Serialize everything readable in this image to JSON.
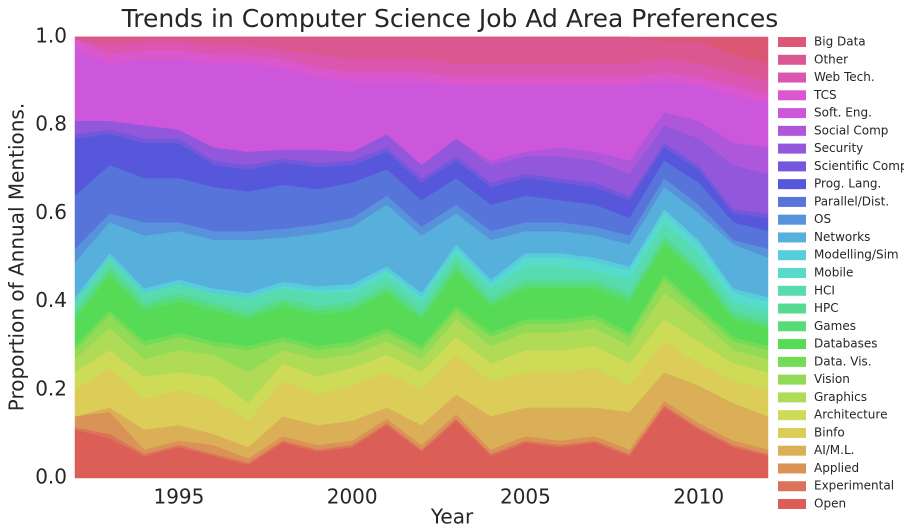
{
  "chart_data": {
    "type": "stacked_area",
    "title": "Trends in Computer Science Job Ad Area Preferences",
    "x_label": "Year",
    "y_label": "Proportion of Annual Mentions.",
    "x": [
      1992,
      1993,
      1994,
      1995,
      1996,
      1997,
      1998,
      1999,
      2000,
      2001,
      2002,
      2003,
      2004,
      2005,
      2006,
      2007,
      2008,
      2009,
      2010,
      2011,
      2012
    ],
    "xlim": [
      1992,
      2012
    ],
    "xticks": [
      1995,
      2000,
      2005,
      2010
    ],
    "ylim": [
      0,
      1
    ],
    "yticks": [
      {
        "value": 0,
        "label": "0.0"
      },
      {
        "value": 0.2,
        "label": "0.2"
      },
      {
        "value": 0.4,
        "label": "0.4"
      },
      {
        "value": 0.6,
        "label": "0.6"
      },
      {
        "value": 0.8,
        "label": "0.8"
      },
      {
        "value": 1,
        "label": "1.0"
      }
    ],
    "legend": "outside-right",
    "series": [
      {
        "name": "Open",
        "color": "#db5f57",
        "values": [
          0.11,
          0.09,
          0.05,
          0.07,
          0.05,
          0.03,
          0.08,
          0.06,
          0.07,
          0.12,
          0.06,
          0.13,
          0.05,
          0.08,
          0.07,
          0.08,
          0.05,
          0.16,
          0.11,
          0.07,
          0.05
        ]
      },
      {
        "name": "Experimental",
        "color": "#db7457",
        "values": [
          0.005,
          0.01,
          0.005,
          0.005,
          0.005,
          0.005,
          0.005,
          0.005,
          0.005,
          0.005,
          0.005,
          0.005,
          0.005,
          0.005,
          0.005,
          0.005,
          0.005,
          0.005,
          0.005,
          0.005,
          0.005
        ]
      },
      {
        "name": "Applied",
        "color": "#db9257",
        "values": [
          0.025,
          0.05,
          0.01,
          0.01,
          0.02,
          0.01,
          0.01,
          0.01,
          0.01,
          0.01,
          0.01,
          0.01,
          0.01,
          0.01,
          0.01,
          0.01,
          0.01,
          0.01,
          0.01,
          0.01,
          0.01
        ]
      },
      {
        "name": "AI/M.L.",
        "color": "#dbaf57",
        "values": [
          0,
          0.01,
          0.045,
          0.035,
          0.025,
          0.025,
          0.045,
          0.045,
          0.045,
          0.025,
          0.045,
          0.045,
          0.075,
          0.065,
          0.075,
          0.065,
          0.085,
          0.065,
          0.085,
          0.085,
          0.075
        ]
      },
      {
        "name": "Binfo",
        "color": "#dbcd57",
        "values": [
          0.06,
          0.09,
          0.07,
          0.08,
          0.08,
          0.06,
          0.08,
          0.07,
          0.08,
          0.08,
          0.08,
          0.09,
          0.08,
          0.08,
          0.08,
          0.09,
          0.06,
          0.07,
          0.05,
          0.05,
          0.06
        ]
      },
      {
        "name": "Architecture",
        "color": "#cddb57",
        "values": [
          0.04,
          0.04,
          0.05,
          0.04,
          0.05,
          0.04,
          0.04,
          0.04,
          0.04,
          0.04,
          0.04,
          0.04,
          0.04,
          0.05,
          0.05,
          0.05,
          0.05,
          0.05,
          0.05,
          0.04,
          0.04
        ]
      },
      {
        "name": "Graphics",
        "color": "#afdb57",
        "values": [
          0.03,
          0.05,
          0.04,
          0.05,
          0.05,
          0.07,
          0.03,
          0.04,
          0.03,
          0.03,
          0.03,
          0.04,
          0.04,
          0.04,
          0.04,
          0.04,
          0.04,
          0.06,
          0.05,
          0.03,
          0.03
        ]
      },
      {
        "name": "Vision",
        "color": "#92db57",
        "values": [
          0.02,
          0.03,
          0.03,
          0.03,
          0.02,
          0.05,
          0.02,
          0.02,
          0.02,
          0.02,
          0.02,
          0.02,
          0.02,
          0.02,
          0.02,
          0.02,
          0.02,
          0.03,
          0.02,
          0.02,
          0.02
        ]
      },
      {
        "name": "Data. Vis.",
        "color": "#74db57",
        "values": [
          0.01,
          0.01,
          0.01,
          0.01,
          0.01,
          0.01,
          0.01,
          0.01,
          0.01,
          0.01,
          0.01,
          0.01,
          0.01,
          0.01,
          0.01,
          0.01,
          0.01,
          0.01,
          0.01,
          0.01,
          0.01
        ]
      },
      {
        "name": "Databases",
        "color": "#57db57",
        "values": [
          0.06,
          0.08,
          0.07,
          0.07,
          0.07,
          0.06,
          0.07,
          0.07,
          0.07,
          0.08,
          0.06,
          0.08,
          0.06,
          0.07,
          0.07,
          0.06,
          0.07,
          0.07,
          0.07,
          0.04,
          0.04
        ]
      },
      {
        "name": "Games",
        "color": "#57db74",
        "values": [
          0.01,
          0.01,
          0.01,
          0.01,
          0.01,
          0.01,
          0.01,
          0.01,
          0.01,
          0.01,
          0.01,
          0.01,
          0.01,
          0.01,
          0.01,
          0.01,
          0.01,
          0.01,
          0.01,
          0.01,
          0.01
        ]
      },
      {
        "name": "HPC",
        "color": "#57db92",
        "values": [
          0.01,
          0.01,
          0.01,
          0.01,
          0.01,
          0.01,
          0.01,
          0.01,
          0.01,
          0.01,
          0.01,
          0.01,
          0.01,
          0.01,
          0.01,
          0.01,
          0.01,
          0.01,
          0.01,
          0.01,
          0.01
        ]
      },
      {
        "name": "HCI",
        "color": "#57dbaf",
        "values": [
          0.02,
          0.02,
          0.02,
          0.02,
          0.02,
          0.03,
          0.02,
          0.03,
          0.02,
          0.02,
          0.02,
          0.02,
          0.02,
          0.03,
          0.03,
          0.02,
          0.03,
          0.03,
          0.03,
          0.02,
          0.02
        ]
      },
      {
        "name": "Mobile",
        "color": "#57dbcd",
        "values": [
          0,
          0,
          0,
          0,
          0,
          0,
          0.005,
          0.005,
          0.01,
          0.01,
          0.01,
          0.01,
          0.01,
          0.02,
          0.02,
          0.02,
          0.02,
          0.02,
          0.02,
          0.02,
          0.02
        ]
      },
      {
        "name": "Modelling/Sim",
        "color": "#57cddb",
        "values": [
          0.01,
          0.01,
          0.01,
          0.01,
          0.01,
          0.01,
          0.01,
          0.01,
          0.01,
          0.01,
          0.01,
          0.01,
          0.01,
          0.01,
          0.01,
          0.01,
          0.01,
          0.01,
          0.01,
          0.01,
          0.01
        ]
      },
      {
        "name": "Networks",
        "color": "#57afdb",
        "values": [
          0.08,
          0.07,
          0.12,
          0.11,
          0.11,
          0.12,
          0.1,
          0.12,
          0.13,
          0.14,
          0.13,
          0.07,
          0.09,
          0.05,
          0.05,
          0.05,
          0.05,
          0.05,
          0.06,
          0.1,
          0.09
        ]
      },
      {
        "name": "OS",
        "color": "#5792db",
        "values": [
          0.03,
          0.02,
          0.03,
          0.02,
          0.02,
          0.02,
          0.02,
          0.02,
          0.02,
          0.02,
          0.02,
          0.02,
          0.02,
          0.02,
          0.02,
          0.02,
          0.02,
          0.02,
          0.02,
          0.01,
          0.02
        ]
      },
      {
        "name": "Parallel/Dist.",
        "color": "#5774db",
        "values": [
          0.12,
          0.11,
          0.1,
          0.1,
          0.1,
          0.09,
          0.1,
          0.08,
          0.08,
          0.06,
          0.06,
          0.06,
          0.06,
          0.06,
          0.05,
          0.05,
          0.04,
          0.04,
          0.05,
          0.04,
          0.04
        ]
      },
      {
        "name": "Prog. Lang.",
        "color": "#5757db",
        "values": [
          0.13,
          0.07,
          0.08,
          0.08,
          0.05,
          0.05,
          0.05,
          0.05,
          0.04,
          0.04,
          0.04,
          0.04,
          0.04,
          0.04,
          0.04,
          0.04,
          0.04,
          0.03,
          0.03,
          0.02,
          0.03
        ]
      },
      {
        "name": "Scientific Comp.",
        "color": "#7457db",
        "values": [
          0.01,
          0.01,
          0.01,
          0.01,
          0.01,
          0.01,
          0.01,
          0.01,
          0.01,
          0.01,
          0.01,
          0.01,
          0.01,
          0.01,
          0.01,
          0.01,
          0.01,
          0.01,
          0.01,
          0.01,
          0.01
        ]
      },
      {
        "name": "Security",
        "color": "#9257db",
        "values": [
          0.03,
          0.02,
          0.03,
          0.02,
          0.03,
          0.03,
          0.02,
          0.03,
          0.02,
          0.03,
          0.03,
          0.04,
          0.04,
          0.04,
          0.05,
          0.05,
          0.05,
          0.04,
          0.06,
          0.1,
          0.09
        ]
      },
      {
        "name": "Social Comp",
        "color": "#af57db",
        "values": [
          0,
          0,
          0,
          0,
          0,
          0,
          0,
          0,
          0,
          0,
          0,
          0,
          0.01,
          0.01,
          0.02,
          0.02,
          0.03,
          0.03,
          0.04,
          0.05,
          0.06
        ]
      },
      {
        "name": "Soft. Eng.",
        "color": "#cd57db",
        "values": [
          0.165,
          0.13,
          0.15,
          0.16,
          0.19,
          0.2,
          0.185,
          0.165,
          0.16,
          0.12,
          0.19,
          0.12,
          0.17,
          0.15,
          0.14,
          0.15,
          0.17,
          0.07,
          0.08,
          0.11,
          0.1
        ]
      },
      {
        "name": "TCS",
        "color": "#db57cd",
        "values": [
          0.02,
          0.02,
          0.02,
          0.02,
          0.02,
          0.02,
          0.02,
          0.02,
          0.02,
          0.02,
          0.02,
          0.02,
          0.02,
          0.02,
          0.02,
          0.02,
          0.02,
          0.02,
          0.02,
          0.02,
          0.02
        ]
      },
      {
        "name": "Web Tech.",
        "color": "#db57af",
        "values": [
          0,
          0.02,
          0.02,
          0.02,
          0.02,
          0.02,
          0.02,
          0.03,
          0.03,
          0.03,
          0.03,
          0.03,
          0.03,
          0.03,
          0.03,
          0.03,
          0.03,
          0.03,
          0.03,
          0.03,
          0.03
        ]
      },
      {
        "name": "Other",
        "color": "#db5792",
        "values": [
          0.005,
          0.02,
          0.01,
          0.01,
          0.02,
          0.02,
          0.03,
          0.04,
          0.05,
          0.05,
          0.05,
          0.06,
          0.06,
          0.06,
          0.06,
          0.06,
          0.06,
          0.04,
          0.05,
          0.04,
          0.04
        ]
      },
      {
        "name": "Big Data",
        "color": "#db5774",
        "values": [
          0,
          0,
          0,
          0,
          0,
          0,
          0,
          0,
          0,
          0,
          0,
          0,
          0,
          0,
          0,
          0,
          0,
          0.01,
          0.01,
          0.04,
          0.06
        ]
      }
    ]
  }
}
